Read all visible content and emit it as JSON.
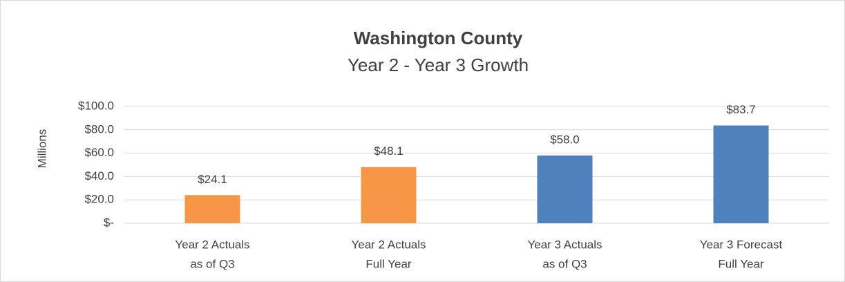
{
  "chart_data": {
    "type": "bar",
    "title": "Washington County",
    "subtitle": "Year 2 - Year 3 Growth",
    "y_label": "Millions",
    "categories": [
      [
        "Year 2 Actuals",
        "as of Q3"
      ],
      [
        "Year 2 Actuals",
        "Full Year"
      ],
      [
        "Year 3 Actuals",
        "as of Q3"
      ],
      [
        "Year 3 Forecast",
        "Full Year"
      ]
    ],
    "values": [
      24.1,
      48.1,
      58.0,
      83.7
    ],
    "value_labels": [
      "$24.1",
      "$48.1",
      "$58.0",
      "$83.7"
    ],
    "colors": [
      "#f79646",
      "#f79646",
      "#4f81bd",
      "#4f81bd"
    ],
    "ylim": [
      0,
      100
    ],
    "yticks": [
      {
        "value": 0,
        "label": "$-"
      },
      {
        "value": 20,
        "label": "$20.0"
      },
      {
        "value": 40,
        "label": "$40.0"
      },
      {
        "value": 60,
        "label": "$60.0"
      },
      {
        "value": 80,
        "label": "$80.0"
      },
      {
        "value": 100,
        "label": "$100.0"
      }
    ],
    "grid": true
  }
}
